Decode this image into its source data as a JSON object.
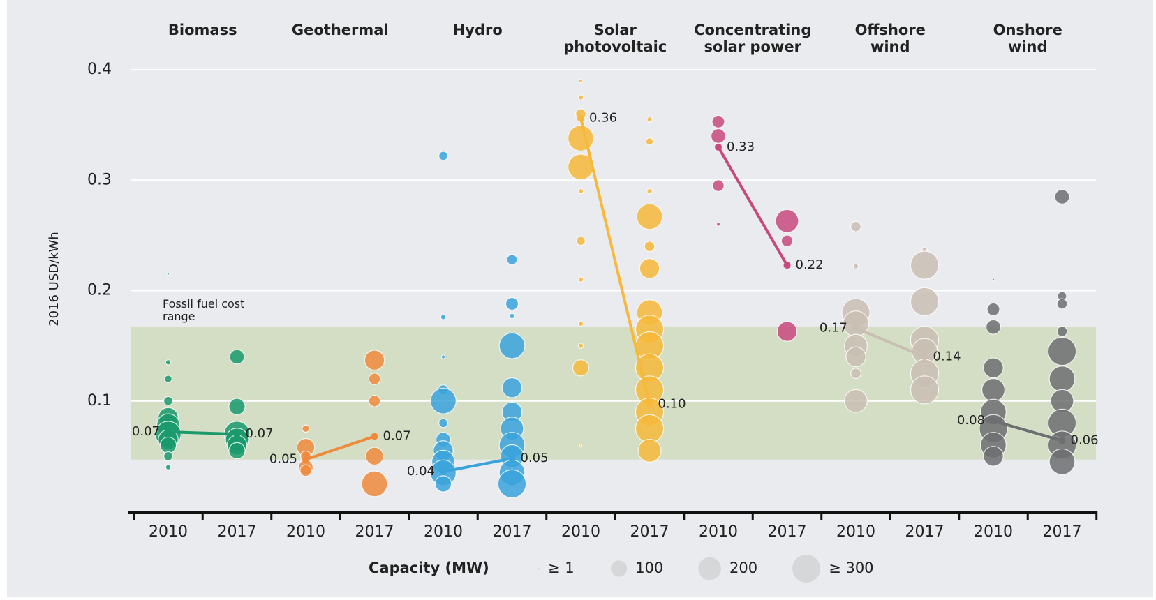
{
  "chart_data": {
    "type": "bubble",
    "y_label": "2016 USD/kWh",
    "ylim": [
      0,
      0.4
    ],
    "yticks": [
      0.1,
      0.2,
      0.3,
      0.4
    ],
    "grid": true,
    "categories": [
      "2010",
      "2017",
      "2010",
      "2017",
      "2010",
      "2017",
      "2010",
      "2017",
      "2010",
      "2017",
      "2010",
      "2017",
      "2010",
      "2017"
    ],
    "fossil_label": "Fossil fuel cost range",
    "fossil_range": [
      0.047,
      0.167
    ],
    "legend": {
      "title": "Capacity (MW)",
      "sizes": [
        {
          "value": 1,
          "label": "≥ 1"
        },
        {
          "value": 100,
          "label": "100"
        },
        {
          "value": 200,
          "label": "200"
        },
        {
          "value": 300,
          "label": "≥ 300"
        }
      ]
    },
    "series": [
      {
        "name": "Biomass",
        "color": "#1a9a6c",
        "averages": [
          0.072,
          0.07
        ],
        "value_labels": [
          "0.07",
          "0.07"
        ],
        "projects": [
          [
            [
              0.215,
              1
            ],
            [
              0.135,
              10
            ],
            [
              0.12,
              20
            ],
            [
              0.1,
              30
            ],
            [
              0.085,
              150
            ],
            [
              0.078,
              200
            ],
            [
              0.07,
              250
            ],
            [
              0.065,
              150
            ],
            [
              0.06,
              100
            ],
            [
              0.05,
              30
            ],
            [
              0.04,
              10
            ]
          ],
          [
            [
              0.14,
              80
            ],
            [
              0.095,
              100
            ],
            [
              0.07,
              250
            ],
            [
              0.065,
              200
            ],
            [
              0.06,
              150
            ],
            [
              0.055,
              100
            ]
          ]
        ]
      },
      {
        "name": "Geothermal",
        "color": "#ef8a3c",
        "averages": [
          0.047,
          0.068
        ],
        "value_labels": [
          "0.05",
          "0.07"
        ],
        "projects": [
          [
            [
              0.075,
              20
            ],
            [
              0.058,
              120
            ],
            [
              0.05,
              40
            ],
            [
              0.04,
              80
            ],
            [
              0.037,
              50
            ]
          ],
          [
            [
              0.137,
              150
            ],
            [
              0.12,
              50
            ],
            [
              0.1,
              50
            ],
            [
              0.05,
              120
            ],
            [
              0.025,
              250
            ]
          ]
        ]
      },
      {
        "name": "Hydro",
        "color": "#3aa3dc",
        "averages": [
          0.036,
          0.048
        ],
        "value_labels": [
          "0.04",
          "0.05"
        ],
        "projects": [
          [
            [
              0.322,
              30
            ],
            [
              0.176,
              10
            ],
            [
              0.14,
              5
            ],
            [
              0.11,
              40
            ],
            [
              0.1,
              250
            ],
            [
              0.08,
              30
            ],
            [
              0.065,
              80
            ],
            [
              0.055,
              150
            ],
            [
              0.045,
              200
            ],
            [
              0.035,
              250
            ],
            [
              0.025,
              100
            ]
          ],
          [
            [
              0.228,
              40
            ],
            [
              0.188,
              60
            ],
            [
              0.177,
              10
            ],
            [
              0.15,
              250
            ],
            [
              0.112,
              150
            ],
            [
              0.09,
              150
            ],
            [
              0.075,
              200
            ],
            [
              0.06,
              250
            ],
            [
              0.05,
              200
            ],
            [
              0.035,
              250
            ],
            [
              0.025,
              300
            ]
          ]
        ]
      },
      {
        "name": "Solar photovoltaic",
        "color": "#f6b93b",
        "averages": [
          0.356,
          0.097
        ],
        "value_labels": [
          "0.36",
          "0.10"
        ],
        "projects": [
          [
            [
              0.39,
              5
            ],
            [
              0.375,
              10
            ],
            [
              0.36,
              40
            ],
            [
              0.338,
              250
            ],
            [
              0.312,
              250
            ],
            [
              0.29,
              10
            ],
            [
              0.245,
              30
            ],
            [
              0.21,
              10
            ],
            [
              0.17,
              10
            ],
            [
              0.15,
              10
            ],
            [
              0.13,
              100
            ],
            [
              0.06,
              2
            ]
          ],
          [
            [
              0.355,
              10
            ],
            [
              0.335,
              20
            ],
            [
              0.29,
              10
            ],
            [
              0.267,
              250
            ],
            [
              0.24,
              40
            ],
            [
              0.22,
              150
            ],
            [
              0.18,
              250
            ],
            [
              0.165,
              300
            ],
            [
              0.15,
              300
            ],
            [
              0.13,
              300
            ],
            [
              0.11,
              300
            ],
            [
              0.09,
              300
            ],
            [
              0.075,
              300
            ],
            [
              0.055,
              200
            ]
          ]
        ]
      },
      {
        "name": "Concentrating solar power",
        "color": "#c8497e",
        "averages": [
          0.33,
          0.223
        ],
        "value_labels": [
          "0.33",
          "0.22"
        ],
        "projects": [
          [
            [
              0.353,
              60
            ],
            [
              0.34,
              80
            ],
            [
              0.295,
              50
            ],
            [
              0.26,
              5
            ]
          ],
          [
            [
              0.263,
              200
            ],
            [
              0.245,
              50
            ],
            [
              0.163,
              150
            ]
          ]
        ]
      },
      {
        "name": "Offshore wind",
        "color": "#c9bfb3",
        "averages": [
          0.166,
          0.14
        ],
        "value_labels": [
          "0.17",
          "0.14"
        ],
        "projects": [
          [
            [
              0.258,
              40
            ],
            [
              0.222,
              10
            ],
            [
              0.18,
              300
            ],
            [
              0.17,
              250
            ],
            [
              0.15,
              200
            ],
            [
              0.14,
              150
            ],
            [
              0.125,
              40
            ],
            [
              0.1,
              200
            ]
          ],
          [
            [
              0.237,
              10
            ],
            [
              0.223,
              300
            ],
            [
              0.19,
              300
            ],
            [
              0.155,
              300
            ],
            [
              0.145,
              250
            ],
            [
              0.125,
              300
            ],
            [
              0.11,
              300
            ]
          ]
        ]
      },
      {
        "name": "Onshore wind",
        "color": "#6d6e71",
        "averages": [
          0.082,
          0.064
        ],
        "value_labels": [
          "0.08",
          "0.06"
        ],
        "projects": [
          [
            [
              0.21,
              2
            ],
            [
              0.183,
              60
            ],
            [
              0.167,
              80
            ],
            [
              0.13,
              150
            ],
            [
              0.11,
              200
            ],
            [
              0.09,
              250
            ],
            [
              0.075,
              300
            ],
            [
              0.06,
              250
            ],
            [
              0.05,
              150
            ]
          ],
          [
            [
              0.285,
              80
            ],
            [
              0.195,
              30
            ],
            [
              0.188,
              40
            ],
            [
              0.163,
              40
            ],
            [
              0.145,
              300
            ],
            [
              0.12,
              250
            ],
            [
              0.1,
              200
            ],
            [
              0.08,
              300
            ],
            [
              0.06,
              300
            ],
            [
              0.045,
              250
            ]
          ]
        ]
      }
    ]
  }
}
